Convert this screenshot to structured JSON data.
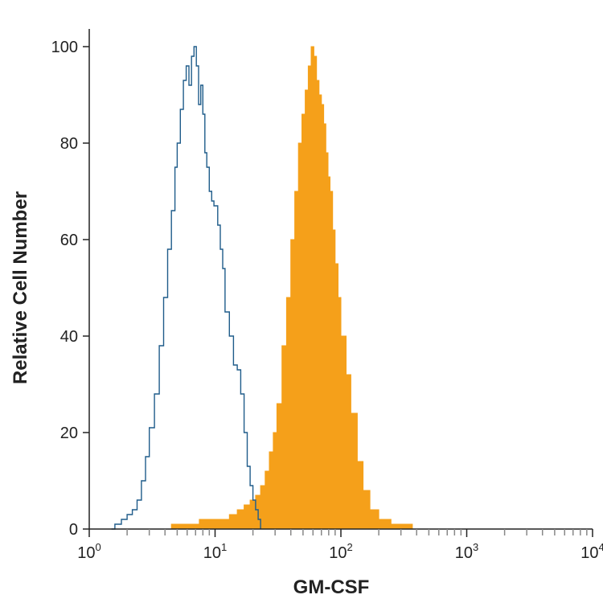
{
  "chart_data": {
    "type": "area",
    "title": "",
    "xlabel": "GM-CSF",
    "ylabel": "Relative Cell Number",
    "x_scale": "log",
    "xlim": [
      1,
      10000
    ],
    "ylim": [
      0,
      100
    ],
    "x_ticks": [
      {
        "base": "10",
        "exp": "0"
      },
      {
        "base": "10",
        "exp": "1"
      },
      {
        "base": "10",
        "exp": "2"
      },
      {
        "base": "10",
        "exp": "3"
      },
      {
        "base": "10",
        "exp": "4"
      }
    ],
    "y_ticks": [
      "0",
      "20",
      "40",
      "60",
      "80",
      "100"
    ],
    "grid": false,
    "series": [
      {
        "style": "outline",
        "color": "#1f5c8a",
        "points": [
          [
            1.5,
            0
          ],
          [
            1.6,
            1
          ],
          [
            1.8,
            2
          ],
          [
            2.0,
            3
          ],
          [
            2.2,
            4
          ],
          [
            2.4,
            6
          ],
          [
            2.6,
            10
          ],
          [
            2.8,
            15
          ],
          [
            3.0,
            21
          ],
          [
            3.3,
            28
          ],
          [
            3.6,
            38
          ],
          [
            3.9,
            48
          ],
          [
            4.2,
            58
          ],
          [
            4.5,
            66
          ],
          [
            4.8,
            75
          ],
          [
            5.0,
            80
          ],
          [
            5.3,
            87
          ],
          [
            5.6,
            93
          ],
          [
            5.9,
            96
          ],
          [
            6.2,
            92
          ],
          [
            6.5,
            98
          ],
          [
            6.8,
            100
          ],
          [
            7.1,
            96
          ],
          [
            7.4,
            88
          ],
          [
            7.7,
            92
          ],
          [
            8.0,
            86
          ],
          [
            8.3,
            78
          ],
          [
            8.6,
            75
          ],
          [
            9.0,
            70
          ],
          [
            9.4,
            68
          ],
          [
            9.8,
            67
          ],
          [
            10.5,
            63
          ],
          [
            11.0,
            58
          ],
          [
            11.5,
            54
          ],
          [
            12.0,
            45
          ],
          [
            13.0,
            40
          ],
          [
            14.0,
            34
          ],
          [
            15.0,
            33
          ],
          [
            16.0,
            28
          ],
          [
            17.0,
            20
          ],
          [
            18.0,
            13
          ],
          [
            19.0,
            9
          ],
          [
            20.0,
            6
          ],
          [
            21.0,
            4
          ],
          [
            22.0,
            2
          ],
          [
            23.0,
            0
          ]
        ]
      },
      {
        "style": "filled",
        "color": "#f5a01a",
        "points": [
          [
            4.0,
            0
          ],
          [
            4.5,
            1
          ],
          [
            6.0,
            1
          ],
          [
            7.5,
            2
          ],
          [
            9.0,
            2
          ],
          [
            11.0,
            2
          ],
          [
            13.0,
            3
          ],
          [
            15.0,
            4
          ],
          [
            17.0,
            5
          ],
          [
            19.0,
            6
          ],
          [
            21.0,
            7
          ],
          [
            23.0,
            9
          ],
          [
            25.0,
            12
          ],
          [
            27.0,
            16
          ],
          [
            29.0,
            20
          ],
          [
            31.0,
            26
          ],
          [
            34.0,
            38
          ],
          [
            37.0,
            48
          ],
          [
            40.0,
            60
          ],
          [
            43.0,
            70
          ],
          [
            46.0,
            80
          ],
          [
            49.0,
            86
          ],
          [
            52.0,
            91
          ],
          [
            55.0,
            96
          ],
          [
            58.0,
            100
          ],
          [
            61.0,
            98
          ],
          [
            64.0,
            93
          ],
          [
            67.0,
            90
          ],
          [
            70.0,
            88
          ],
          [
            73.0,
            84
          ],
          [
            76.0,
            78
          ],
          [
            79.0,
            73
          ],
          [
            82.0,
            70
          ],
          [
            86.0,
            62
          ],
          [
            90.0,
            55
          ],
          [
            95.0,
            48
          ],
          [
            100.0,
            40
          ],
          [
            110.0,
            32
          ],
          [
            120.0,
            24
          ],
          [
            135.0,
            14
          ],
          [
            150.0,
            8
          ],
          [
            170.0,
            4
          ],
          [
            200.0,
            2
          ],
          [
            250.0,
            1
          ],
          [
            330.0,
            1
          ],
          [
            370.0,
            0
          ]
        ]
      }
    ]
  }
}
